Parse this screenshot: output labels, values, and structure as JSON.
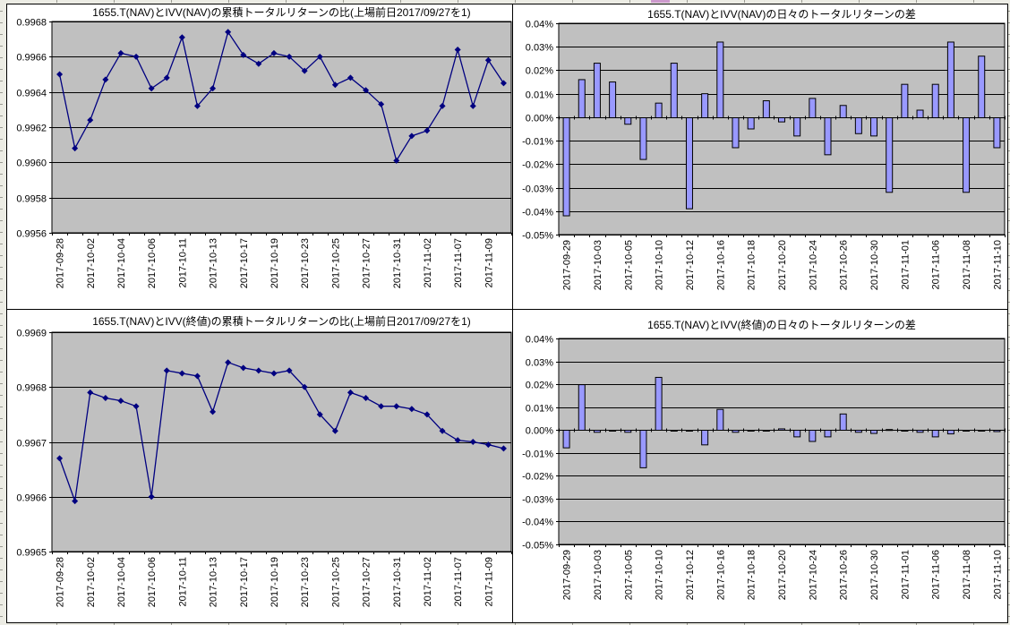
{
  "colors": {
    "sheet_background": "#ECECE4",
    "chart_background": "#FFFFFF",
    "plot_background": "#C0C0C0",
    "gridline": "#000000",
    "line_series": "#000080",
    "bar_fill": "#9999FF",
    "bar_border": "#000000",
    "text": "#000000",
    "sheet_gridline_tick": "#9a9a92",
    "selection_fragment": "#CC99CC"
  },
  "chart_data": [
    {
      "id": "cumulative-nav-nav",
      "type": "line",
      "title": "1655.T(NAV)とIVV(NAV)の累積トータルリターンの比(上場前日2017/09/27を1)",
      "categories": [
        "2017-09-28",
        "2017-09-29",
        "2017-10-02",
        "2017-10-03",
        "2017-10-04",
        "2017-10-05",
        "2017-10-06",
        "2017-10-10",
        "2017-10-11",
        "2017-10-12",
        "2017-10-13",
        "2017-10-16",
        "2017-10-17",
        "2017-10-18",
        "2017-10-19",
        "2017-10-20",
        "2017-10-23",
        "2017-10-24",
        "2017-10-25",
        "2017-10-26",
        "2017-10-27",
        "2017-10-30",
        "2017-10-31",
        "2017-11-01",
        "2017-11-02",
        "2017-11-06",
        "2017-11-07",
        "2017-11-08",
        "2017-11-09",
        "2017-11-10"
      ],
      "values": [
        0.9965,
        0.99608,
        0.99624,
        0.99647,
        0.99662,
        0.9966,
        0.99642,
        0.99648,
        0.99671,
        0.99632,
        0.99642,
        0.99674,
        0.99661,
        0.99656,
        0.99662,
        0.9966,
        0.99652,
        0.9966,
        0.99644,
        0.99648,
        0.99641,
        0.99633,
        0.99601,
        0.99615,
        0.99618,
        0.99632,
        0.99664,
        0.99632,
        0.99658,
        0.99645
      ],
      "ylim": [
        0.9956,
        0.9968
      ],
      "yticks": [
        "0.9968",
        "0.9966",
        "0.9964",
        "0.9962",
        "0.9960",
        "0.9958",
        "0.9956"
      ],
      "xtick_label_every": 2,
      "grid": "horizontal",
      "legend": "none"
    },
    {
      "id": "daily-nav-nav",
      "type": "bar",
      "title": "1655.T(NAV)とIVV(NAV)の日々のトータルリターンの差",
      "unit": "%",
      "categories": [
        "2017-09-29",
        "2017-10-02",
        "2017-10-03",
        "2017-10-04",
        "2017-10-05",
        "2017-10-06",
        "2017-10-10",
        "2017-10-11",
        "2017-10-12",
        "2017-10-13",
        "2017-10-16",
        "2017-10-17",
        "2017-10-18",
        "2017-10-19",
        "2017-10-20",
        "2017-10-23",
        "2017-10-24",
        "2017-10-25",
        "2017-10-26",
        "2017-10-27",
        "2017-10-30",
        "2017-10-31",
        "2017-11-01",
        "2017-11-02",
        "2017-11-06",
        "2017-11-07",
        "2017-11-08",
        "2017-11-09",
        "2017-11-10"
      ],
      "values": [
        -0.042,
        0.016,
        0.023,
        0.015,
        -0.003,
        -0.018,
        0.006,
        0.023,
        -0.039,
        0.01,
        0.032,
        -0.013,
        -0.005,
        0.007,
        -0.002,
        -0.008,
        0.008,
        -0.016,
        0.005,
        -0.007,
        -0.008,
        -0.032,
        0.014,
        0.003,
        0.014,
        0.032,
        -0.032,
        0.026,
        -0.013
      ],
      "ylim": [
        -0.05,
        0.04
      ],
      "yticks": [
        "0.04%",
        "0.03%",
        "0.02%",
        "0.01%",
        "0.00%",
        "-0.01%",
        "-0.02%",
        "-0.03%",
        "-0.04%",
        "-0.05%"
      ],
      "xtick_label_every": 2,
      "grid": "horizontal",
      "legend": "none"
    },
    {
      "id": "cumulative-nav-close",
      "type": "line",
      "title": "1655.T(NAV)とIVV(終値)の累積トータルリターンの比(上場前日2017/09/27を1)",
      "categories": [
        "2017-09-28",
        "2017-09-29",
        "2017-10-02",
        "2017-10-03",
        "2017-10-04",
        "2017-10-05",
        "2017-10-06",
        "2017-10-10",
        "2017-10-11",
        "2017-10-12",
        "2017-10-13",
        "2017-10-16",
        "2017-10-17",
        "2017-10-18",
        "2017-10-19",
        "2017-10-20",
        "2017-10-23",
        "2017-10-24",
        "2017-10-25",
        "2017-10-26",
        "2017-10-27",
        "2017-10-30",
        "2017-10-31",
        "2017-11-01",
        "2017-11-02",
        "2017-11-06",
        "2017-11-07",
        "2017-11-08",
        "2017-11-09",
        "2017-11-10"
      ],
      "values": [
        0.99667,
        0.996592,
        0.99679,
        0.99678,
        0.996775,
        0.996765,
        0.9966,
        0.99683,
        0.996825,
        0.99682,
        0.996755,
        0.996845,
        0.996835,
        0.99683,
        0.996825,
        0.99683,
        0.9968,
        0.99675,
        0.99672,
        0.99679,
        0.99678,
        0.996765,
        0.996765,
        0.99676,
        0.99675,
        0.99672,
        0.996703,
        0.9967,
        0.996695,
        0.996688
      ],
      "ylim": [
        0.9965,
        0.9969
      ],
      "yticks": [
        "0.9969",
        "0.9968",
        "0.9967",
        "0.9966",
        "0.9965"
      ],
      "xtick_label_every": 2,
      "grid": "horizontal",
      "legend": "none"
    },
    {
      "id": "daily-nav-close",
      "type": "bar",
      "title": "1655.T(NAV)とIVV(終値)の日々のトータルリターンの差",
      "unit": "%",
      "categories": [
        "2017-09-29",
        "2017-10-02",
        "2017-10-03",
        "2017-10-04",
        "2017-10-05",
        "2017-10-06",
        "2017-10-10",
        "2017-10-11",
        "2017-10-12",
        "2017-10-13",
        "2017-10-16",
        "2017-10-17",
        "2017-10-18",
        "2017-10-19",
        "2017-10-20",
        "2017-10-23",
        "2017-10-24",
        "2017-10-25",
        "2017-10-26",
        "2017-10-27",
        "2017-10-30",
        "2017-10-31",
        "2017-11-01",
        "2017-11-02",
        "2017-11-06",
        "2017-11-07",
        "2017-11-08",
        "2017-11-09",
        "2017-11-10"
      ],
      "values": [
        -0.0078,
        0.0198,
        -0.001,
        -0.0005,
        -0.001,
        -0.0165,
        0.023,
        -0.0005,
        -0.0005,
        -0.0065,
        0.009,
        -0.001,
        -0.0005,
        -0.0005,
        0.0005,
        -0.003,
        -0.005,
        -0.003,
        0.007,
        -0.001,
        -0.0015,
        0.0002,
        -0.0005,
        -0.001,
        -0.003,
        -0.0017,
        -0.0003,
        -0.0005,
        -0.0007
      ],
      "ylim": [
        -0.05,
        0.04
      ],
      "yticks": [
        "0.04%",
        "0.03%",
        "0.02%",
        "0.01%",
        "0.00%",
        "-0.01%",
        "-0.02%",
        "-0.03%",
        "-0.04%",
        "-0.05%"
      ],
      "xtick_label_every": 2,
      "grid": "horizontal",
      "legend": "none"
    }
  ]
}
